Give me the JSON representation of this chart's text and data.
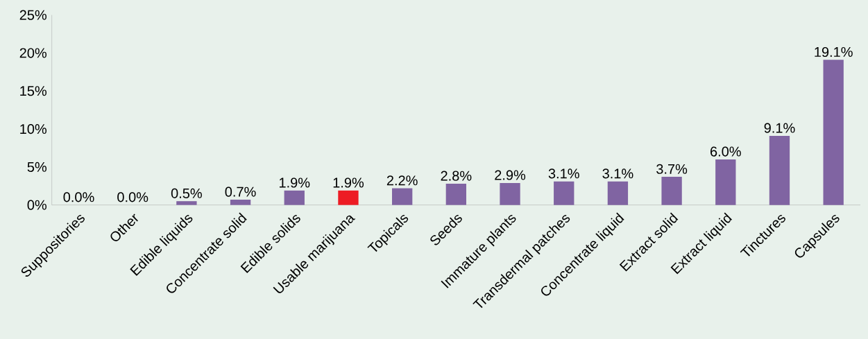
{
  "chart_data": {
    "type": "bar",
    "categories": [
      "Suppositories",
      "Other",
      "Edible liquids",
      "Concentrate solid",
      "Edible solids",
      "Usable marijuana",
      "Topicals",
      "Seeds",
      "Immature plants",
      "Transdermal patches",
      "Concentrate liquid",
      "Extract solid",
      "Extract liquid",
      "Tinctures",
      "Capsules"
    ],
    "values": [
      0.0,
      0.0,
      0.5,
      0.7,
      1.9,
      1.9,
      2.2,
      2.8,
      2.9,
      3.1,
      3.1,
      3.7,
      6.0,
      9.1,
      19.1
    ],
    "value_labels": [
      "0.0%",
      "0.0%",
      "0.5%",
      "0.7%",
      "1.9%",
      "1.9%",
      "2.2%",
      "2.8%",
      "2.9%",
      "3.1%",
      "3.1%",
      "3.7%",
      "6.0%",
      "9.1%",
      "19.1%"
    ],
    "colors": [
      "#8064a2",
      "#8064a2",
      "#8064a2",
      "#8064a2",
      "#8064a2",
      "#ed1c24",
      "#8064a2",
      "#8064a2",
      "#8064a2",
      "#8064a2",
      "#8064a2",
      "#8064a2",
      "#8064a2",
      "#8064a2",
      "#8064a2"
    ],
    "ylim": [
      0,
      25
    ],
    "yticks": [
      {
        "value": 0,
        "label": "0%"
      },
      {
        "value": 5,
        "label": "5%"
      },
      {
        "value": 10,
        "label": "10%"
      },
      {
        "value": 15,
        "label": "15%"
      },
      {
        "value": 20,
        "label": "20%"
      },
      {
        "value": 25,
        "label": "25%"
      }
    ],
    "grid": false
  }
}
